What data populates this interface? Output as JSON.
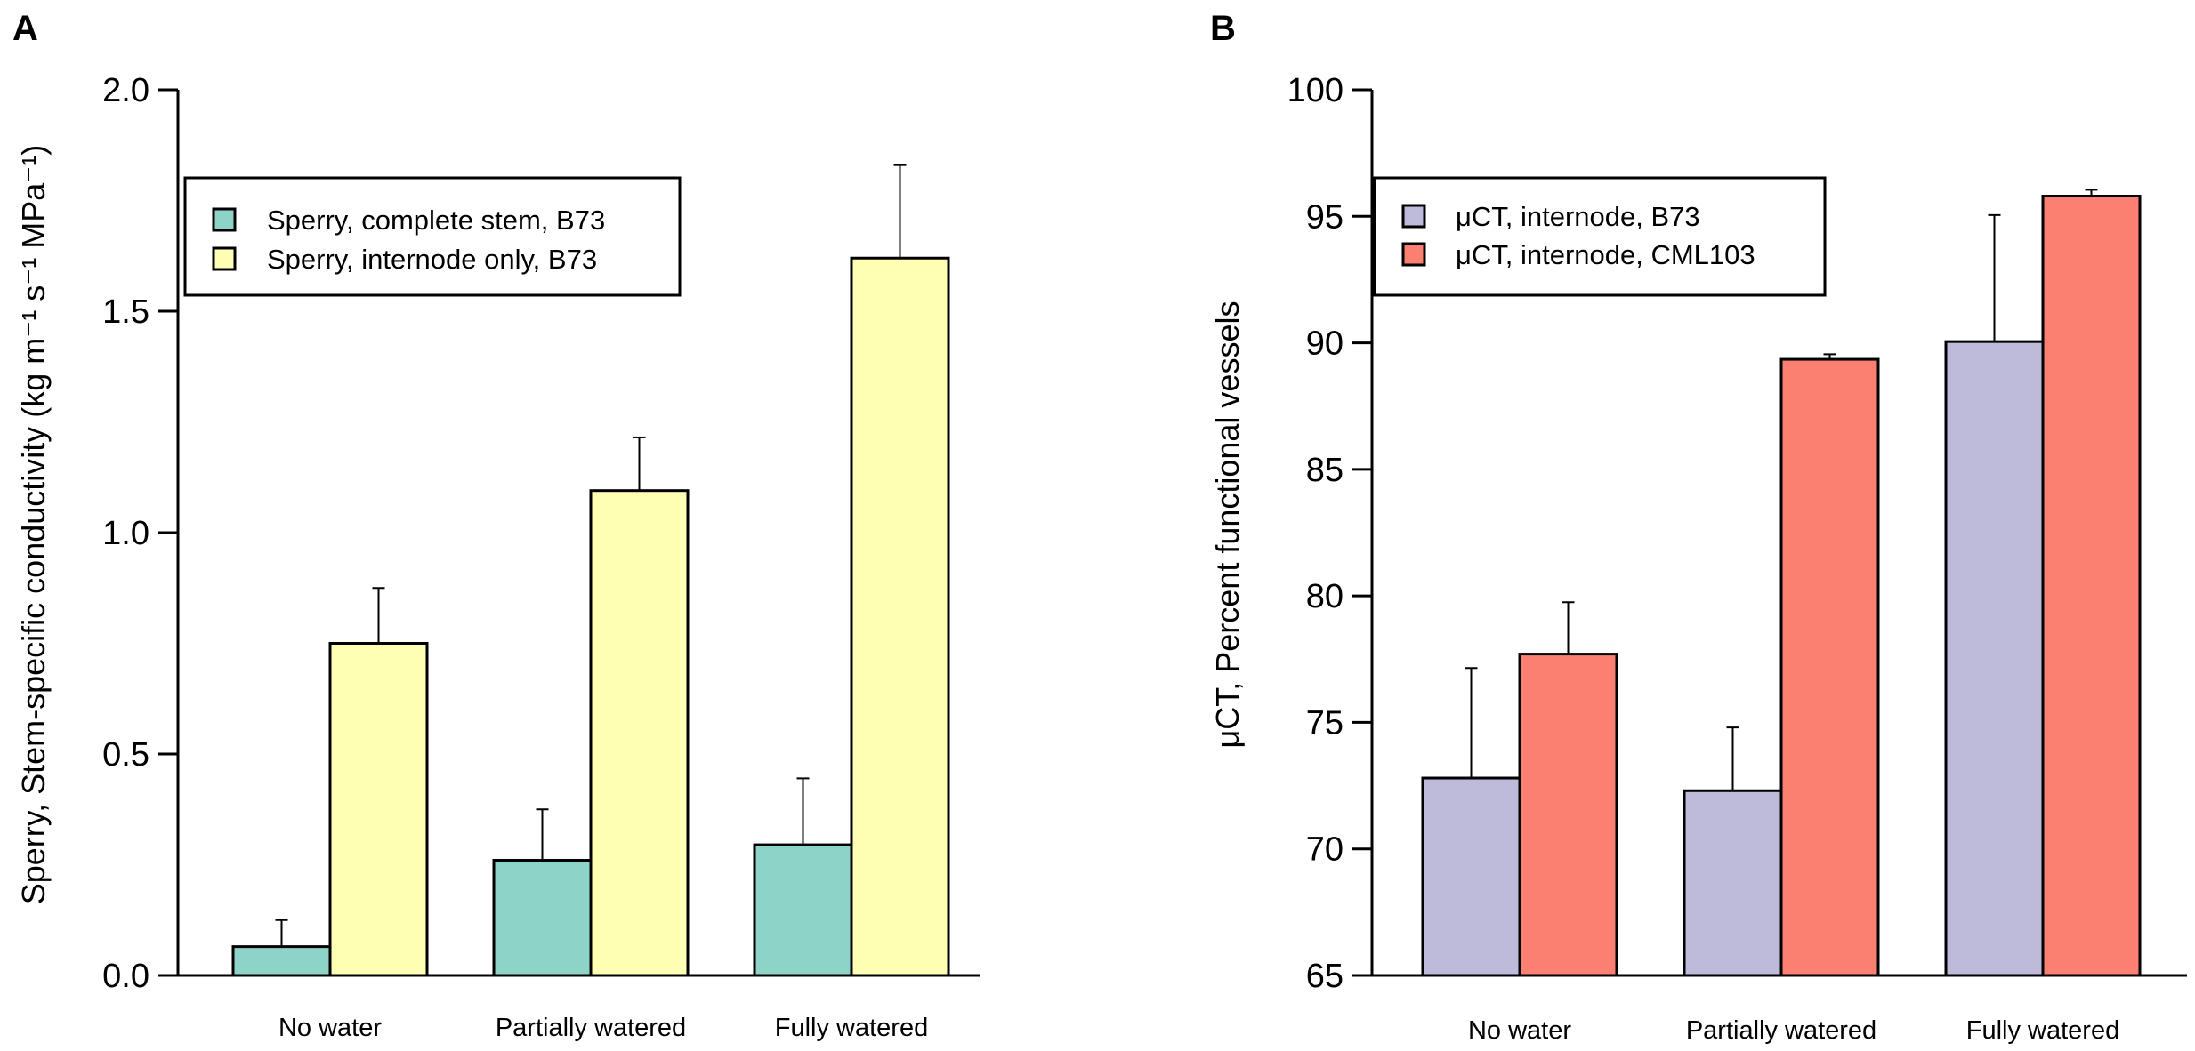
{
  "chart_data": [
    {
      "panel": "A",
      "type": "bar",
      "title": "",
      "xlabel": "",
      "ylabel": "Sperry, Stem-specific conductivity (kg m⁻¹ s⁻¹ MPa⁻¹)",
      "ylim": [
        0.0,
        2.0
      ],
      "yticks": [
        0.0,
        0.5,
        1.0,
        1.5,
        2.0
      ],
      "ytick_labels": [
        "0.0",
        "0.5",
        "1.0",
        "1.5",
        "2.0"
      ],
      "categories": [
        "No water",
        "Partially watered",
        "Fully watered"
      ],
      "legend_position": "top-left",
      "series": [
        {
          "name": "Sperry, complete stem, B73",
          "color": "#8dd3c7",
          "values": [
            0.065,
            0.26,
            0.295
          ],
          "errors": [
            0.06,
            0.115,
            0.15
          ]
        },
        {
          "name": "Sperry, internode only, B73",
          "color": "#ffffb3",
          "values": [
            0.75,
            1.095,
            1.62
          ],
          "errors": [
            0.125,
            0.12,
            0.21
          ]
        }
      ]
    },
    {
      "panel": "B",
      "type": "bar",
      "title": "",
      "xlabel": "",
      "ylabel": "μCT, Percent functional vessels",
      "ylim": [
        65,
        100
      ],
      "yticks": [
        65,
        70,
        75,
        80,
        85,
        90,
        95,
        100
      ],
      "ytick_labels": [
        "65",
        "70",
        "75",
        "80",
        "85",
        "90",
        "95",
        "100"
      ],
      "categories": [
        "No water",
        "Partially watered",
        "Fully watered"
      ],
      "legend_position": "top-left",
      "series": [
        {
          "name": "μCT, internode, B73",
          "color": "#bebada",
          "values": [
            72.8,
            72.3,
            90.05
          ],
          "errors": [
            4.35,
            2.5,
            5.0
          ]
        },
        {
          "name": "μCT, internode, CML103",
          "color": "#fb8072",
          "values": [
            77.7,
            89.35,
            95.8
          ],
          "errors": [
            2.05,
            0.2,
            0.25
          ]
        }
      ]
    }
  ]
}
